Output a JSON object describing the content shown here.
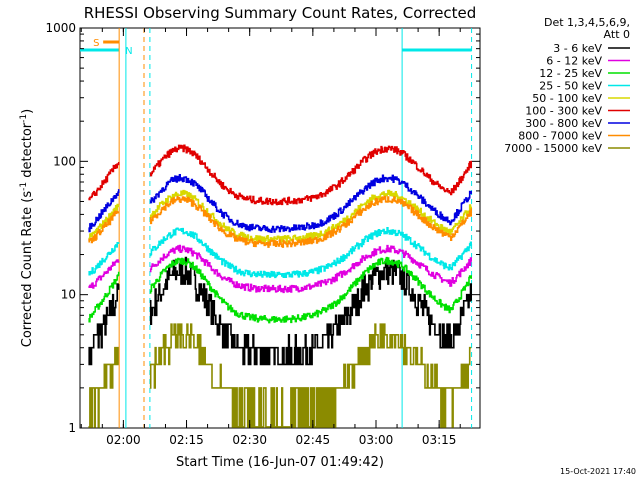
{
  "chart_data": {
    "type": "line",
    "title": "RHESSI Observing Summary Count Rates, Corrected",
    "xlabel": "Start Time (16-Jun-07 01:49:42)",
    "ylabel_main": "Corrected Count Rate (s",
    "ylabel_sup1": "-1",
    "ylabel_mid": " detector",
    "ylabel_sup2": "-1",
    "ylabel_end": ")",
    "yscale": "log",
    "ylim": [
      1,
      1000
    ],
    "xlim_minutes": [
      0,
      95
    ],
    "x_ticks": [
      {
        "label": "02:00",
        "minute": 10.3
      },
      {
        "label": "02:15",
        "minute": 25.3
      },
      {
        "label": "02:30",
        "minute": 40.3
      },
      {
        "label": "02:45",
        "minute": 55.3
      },
      {
        "label": "03:00",
        "minute": 70.3
      },
      {
        "label": "03:15",
        "minute": 85.3
      }
    ],
    "y_ticks": [
      {
        "label": "1",
        "value": 1
      },
      {
        "label": "10",
        "value": 10
      },
      {
        "label": "100",
        "value": 100
      },
      {
        "label": "1000",
        "value": 1000
      }
    ],
    "legend_header": [
      "Det 1,3,4,5,6,9,",
      "Att 0"
    ],
    "series": [
      {
        "name": "3 - 6 keV",
        "color": "#000000",
        "base": 3.5,
        "peak": 15
      },
      {
        "name": "6 - 12 keV",
        "color": "#e000e0",
        "base": 11,
        "peak": 22
      },
      {
        "name": "12 - 25 keV",
        "color": "#00e000",
        "base": 6.5,
        "peak": 18
      },
      {
        "name": "25 - 50 keV",
        "color": "#00e8e8",
        "base": 14,
        "peak": 30
      },
      {
        "name": "50 - 100 keV",
        "color": "#d8d800",
        "base": 26,
        "peak": 57
      },
      {
        "name": "100 - 300 keV",
        "color": "#e00000",
        "base": 50,
        "peak": 125
      },
      {
        "name": "300 - 800 keV",
        "color": "#0000e0",
        "base": 31,
        "peak": 75
      },
      {
        "name": "800 - 7000 keV",
        "color": "#ff8c00",
        "base": 24,
        "peak": 52
      },
      {
        "name": "7000 - 15000 keV",
        "color": "#8b8b00",
        "base": 1.3,
        "peak": 5
      }
    ],
    "flags": [
      {
        "label": "S",
        "color": "#ff8c00",
        "start_minute": 5.5,
        "end_minute": 9.3
      },
      {
        "label": "N",
        "color": "#00e8e8",
        "start_minute": 0,
        "end_minute": 9.3
      }
    ],
    "footer_timestamp": "15-Oct-2021 17:40"
  }
}
